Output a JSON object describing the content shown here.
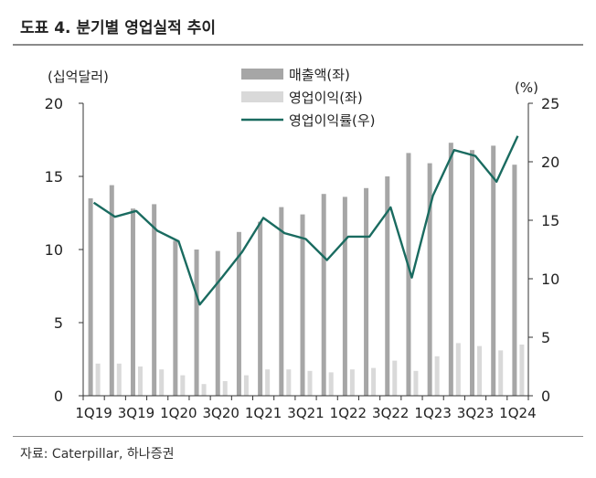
{
  "title": "도표 4. 분기별 영업실적 추이",
  "source": "자료: Caterpillar, 하나증권",
  "chart_data": {
    "type": "bar",
    "categories": [
      "1Q19",
      "2Q19",
      "3Q19",
      "4Q19",
      "1Q20",
      "2Q20",
      "3Q20",
      "4Q20",
      "1Q21",
      "2Q21",
      "3Q21",
      "4Q21",
      "1Q22",
      "2Q22",
      "3Q22",
      "4Q22",
      "1Q23",
      "2Q23",
      "3Q23",
      "4Q23",
      "1Q24"
    ],
    "tick_labels": [
      "1Q19",
      "3Q19",
      "1Q20",
      "3Q20",
      "1Q21",
      "3Q21",
      "1Q22",
      "3Q22",
      "1Q23",
      "3Q23",
      "1Q24"
    ],
    "left_axis": {
      "label": "(십억달러)",
      "ylim": [
        0,
        20
      ],
      "ticks": [
        "0",
        "5",
        "10",
        "15",
        "20"
      ]
    },
    "right_axis": {
      "label": "(%)",
      "ylim": [
        0,
        25
      ],
      "ticks": [
        "0",
        "5",
        "10",
        "15",
        "20",
        "25"
      ]
    },
    "series": [
      {
        "name": "매출액(좌)",
        "type": "bar",
        "axis": "left",
        "color": "#a6a6a6",
        "values": [
          13.5,
          14.4,
          12.8,
          13.1,
          10.6,
          10.0,
          9.9,
          11.2,
          11.9,
          12.9,
          12.4,
          13.8,
          13.6,
          14.2,
          15.0,
          16.6,
          15.9,
          17.3,
          16.8,
          17.1,
          15.8
        ]
      },
      {
        "name": "영업이익(좌)",
        "type": "bar",
        "axis": "left",
        "color": "#d9d9d9",
        "values": [
          2.2,
          2.2,
          2.0,
          1.8,
          1.4,
          0.8,
          1.0,
          1.4,
          1.8,
          1.8,
          1.7,
          1.6,
          1.8,
          1.9,
          2.4,
          1.7,
          2.7,
          3.6,
          3.4,
          3.1,
          3.5
        ]
      },
      {
        "name": "영업이익률(우)",
        "type": "line",
        "axis": "right",
        "color": "#1a6b60",
        "values": [
          16.5,
          15.3,
          15.8,
          14.1,
          13.2,
          7.8,
          10.0,
          12.3,
          15.2,
          13.9,
          13.4,
          11.6,
          13.6,
          13.6,
          16.1,
          10.1,
          17.1,
          21.0,
          20.5,
          18.3,
          22.2
        ]
      }
    ],
    "legend_position": "top-center",
    "grid": false
  }
}
